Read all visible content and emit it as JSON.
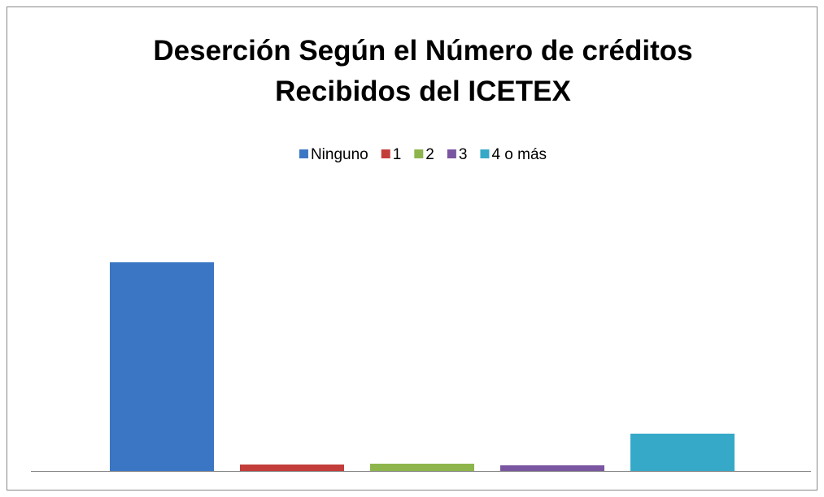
{
  "chart_data": {
    "type": "bar",
    "title": "Deserción Según el Número de créditos Recibidos del ICETEX",
    "series": [
      {
        "name": "Ninguno",
        "color": "#3a76c4",
        "values": [
          257
        ]
      },
      {
        "name": "1",
        "color": "#c33d3a",
        "values": [
          8
        ]
      },
      {
        "name": "2",
        "color": "#8db54c",
        "values": [
          9
        ]
      },
      {
        "name": "3",
        "color": "#7a55a1",
        "values": [
          7
        ]
      },
      {
        "name": "4 o más",
        "color": "#36a9c8",
        "values": [
          46
        ]
      }
    ],
    "ylim": [
      0,
      350
    ],
    "legend": "top"
  }
}
